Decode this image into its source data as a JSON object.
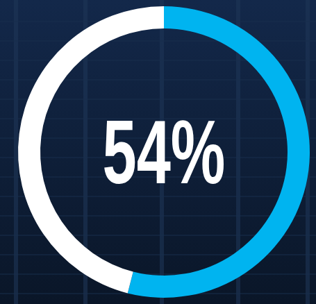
{
  "chart_data": {
    "type": "donut",
    "values": [
      54,
      46
    ],
    "colors": [
      "#00b4f0",
      "#ffffff"
    ],
    "data_labels": true,
    "value_labels": [
      "54%",
      null
    ]
  }
}
